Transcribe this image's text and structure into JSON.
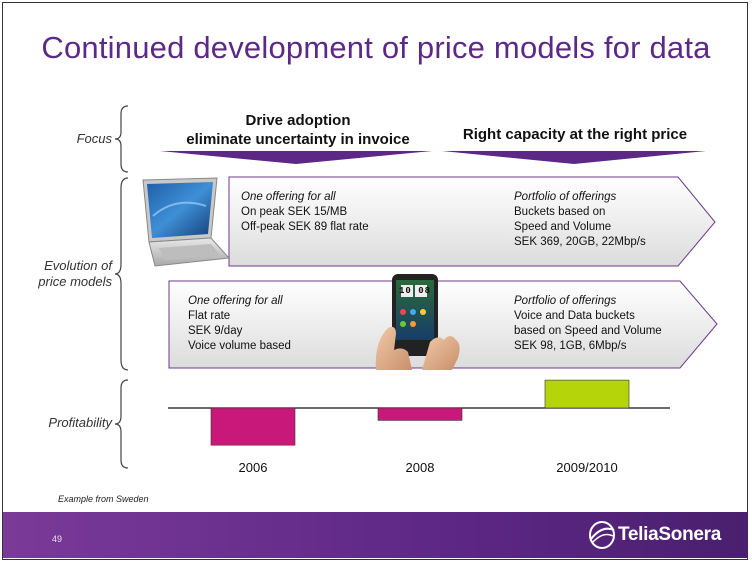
{
  "slide": {
    "title": "Continued development of price models for data",
    "page_number": "49",
    "note": "Example from Sweden",
    "logo": "TeliaSonera"
  },
  "rows": {
    "focus": "Focus",
    "evolution_line1": "Evolution of",
    "evolution_line2": "price models",
    "profitability": "Profitability"
  },
  "focus": {
    "left_line1": "Drive adoption",
    "left_line2": "eliminate uncertainty in invoice",
    "right": "Right capacity at the right price"
  },
  "mobile_broadband": {
    "left": {
      "heading": "One offering for all",
      "lines": [
        "On peak SEK 15/MB",
        "Off-peak SEK 89 flat rate"
      ]
    },
    "right": {
      "heading": "Portfolio of offerings",
      "lines": [
        "Buckets based on",
        "Speed and Volume",
        "SEK 369, 20GB, 22Mbp/s"
      ]
    }
  },
  "handset": {
    "left": {
      "heading": "One offering for all",
      "lines": [
        "Flat rate",
        "SEK 9/day",
        "Voice volume based"
      ]
    },
    "right": {
      "heading": "Portfolio of offerings",
      "lines": [
        "Voice and Data buckets",
        "based on Speed and Volume",
        "SEK 98, 1GB, 6Mbp/s"
      ]
    },
    "clock": "10 08"
  },
  "chart_data": {
    "type": "bar",
    "categories": [
      "2006",
      "2008",
      "2009/2010"
    ],
    "values": [
      -0.6,
      -0.2,
      0.45
    ],
    "colors": [
      "#c8197a",
      "#c8197a",
      "#b5d40a"
    ]
  },
  "colors": {
    "title": "#5b2a86",
    "accent_purple": "#5d2785",
    "negative": "#c8197a",
    "positive": "#b5d40a"
  }
}
